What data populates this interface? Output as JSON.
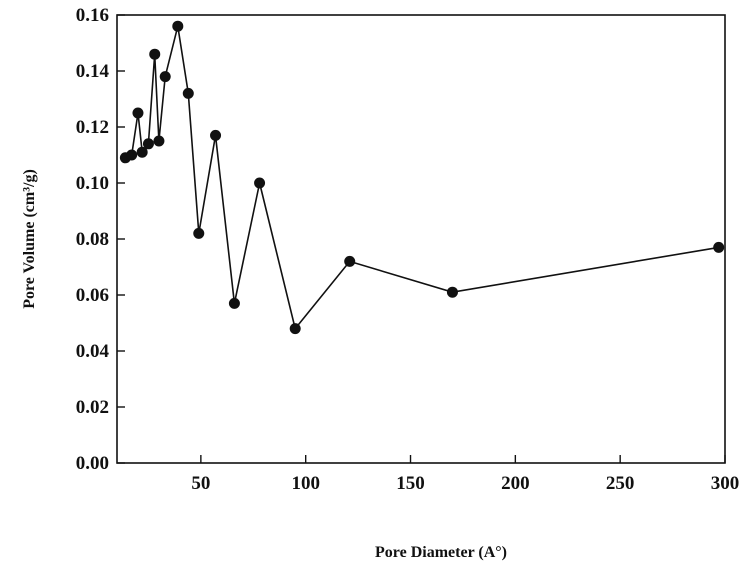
{
  "chart_data": {
    "type": "line",
    "title": "",
    "xlabel": "Pore Diameter (A°)",
    "ylabel": "Pore Volume (cm³/g)",
    "xlim": [
      10,
      300
    ],
    "ylim": [
      0,
      0.16
    ],
    "xticks": [
      50,
      100,
      150,
      200,
      250,
      300
    ],
    "xtick_labels": [
      "50",
      "100",
      "150",
      "200",
      "250",
      "300"
    ],
    "yticks": [
      0,
      0.02,
      0.04,
      0.06,
      0.08,
      0.1,
      0.12,
      0.14,
      0.16
    ],
    "ytick_labels": [
      "0.00",
      "0.02",
      "0.04",
      "0.06",
      "0.08",
      "0.10",
      "0.12",
      "0.14",
      "0.16"
    ],
    "grid": false,
    "legend": "none",
    "series": [
      {
        "color": "#111111",
        "marker": "filled-circle",
        "x": [
          14,
          17,
          20,
          22,
          25,
          28,
          30,
          33,
          39,
          44,
          49,
          57,
          66,
          78,
          95,
          121,
          170,
          297
        ],
        "y": [
          0.109,
          0.11,
          0.125,
          0.111,
          0.114,
          0.146,
          0.115,
          0.138,
          0.156,
          0.132,
          0.082,
          0.117,
          0.057,
          0.1,
          0.048,
          0.072,
          0.061,
          0.077
        ]
      }
    ]
  }
}
